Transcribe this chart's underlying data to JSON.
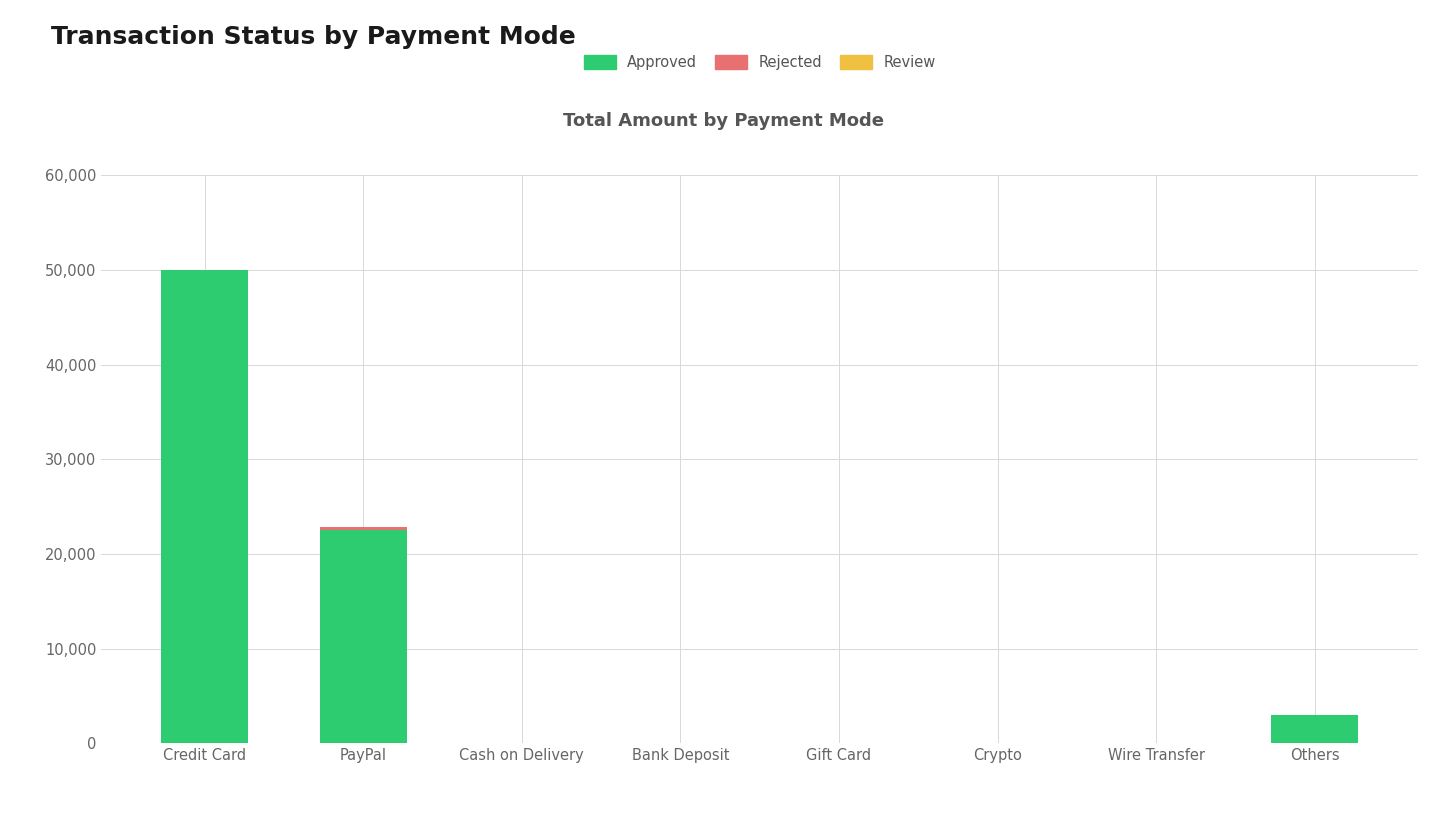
{
  "title": "Transaction Status by Payment Mode",
  "chart_title": "Total Amount by Payment Mode",
  "categories": [
    "Credit Card",
    "PayPal",
    "Cash on Delivery",
    "Bank Deposit",
    "Gift Card",
    "Crypto",
    "Wire Transfer",
    "Others"
  ],
  "approved": [
    50000,
    22500,
    0,
    0,
    0,
    0,
    0,
    3000
  ],
  "rejected": [
    0,
    300,
    0,
    0,
    0,
    0,
    0,
    0
  ],
  "review": [
    0,
    0,
    0,
    0,
    0,
    0,
    0,
    0
  ],
  "approved_color": "#2ecc71",
  "rejected_color": "#e97070",
  "review_color": "#f0c040",
  "background_color": "#ffffff",
  "grid_color": "#d8d8d8",
  "title_fontsize": 18,
  "chart_title_fontsize": 13,
  "tick_label_color": "#666666",
  "ylim": [
    0,
    60000
  ],
  "yticks": [
    0,
    10000,
    20000,
    30000,
    40000,
    50000,
    60000
  ]
}
